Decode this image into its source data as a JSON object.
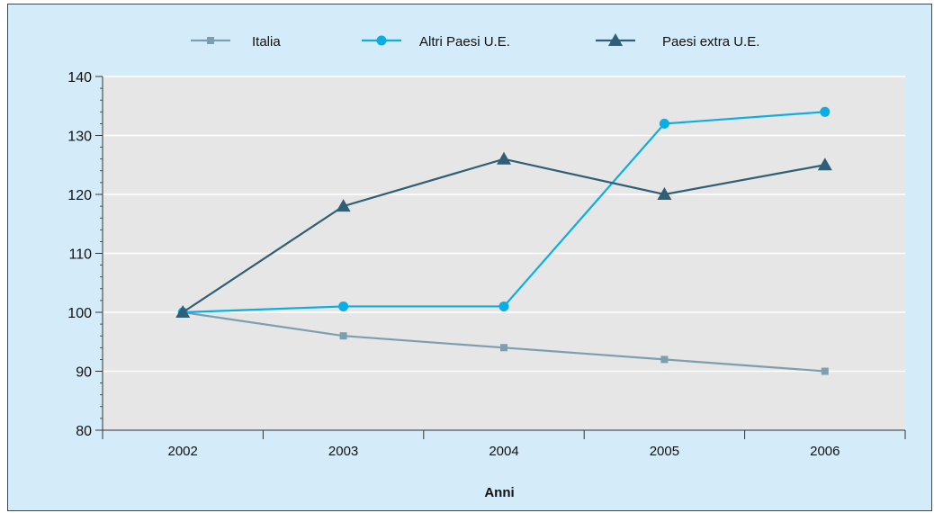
{
  "chart_data": {
    "type": "line",
    "title": "",
    "xlabel": "Anni",
    "ylabel": "",
    "categories": [
      "2002",
      "2003",
      "2004",
      "2005",
      "2006"
    ],
    "ylim": [
      80,
      140
    ],
    "yticks": [
      "80",
      "90",
      "100",
      "110",
      "120",
      "130",
      "140"
    ],
    "grid": true,
    "legend_position": "top",
    "series": [
      {
        "name": "Italia",
        "values": [
          100,
          96,
          94,
          92,
          90
        ],
        "color": "#7c9fb0",
        "marker": "square"
      },
      {
        "name": "Altri Paesi U.E.",
        "values": [
          100,
          101,
          101,
          132,
          134
        ],
        "color": "#0aaee5",
        "marker": "circle"
      },
      {
        "name": "Paesi extra U.E.",
        "values": [
          100,
          118,
          126,
          120,
          125
        ],
        "color": "#2f5f75",
        "marker": "triangle"
      }
    ]
  },
  "colors": {
    "background": "#d4ecf9",
    "plot_area": "#e6e6e7",
    "gridline": "#ffffff"
  }
}
